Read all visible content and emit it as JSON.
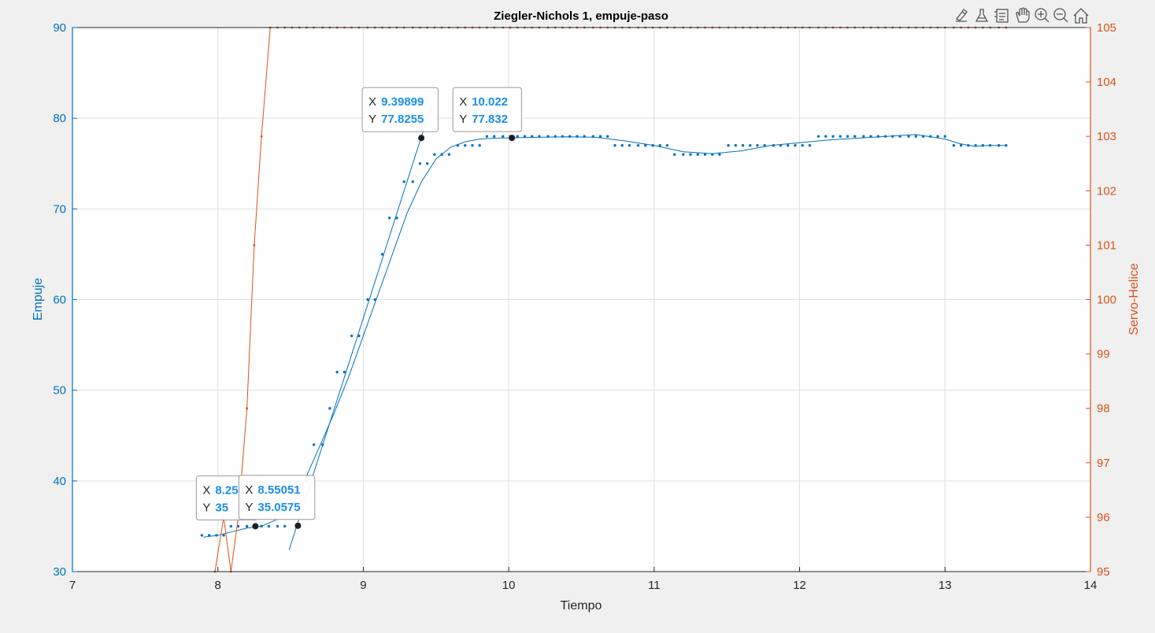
{
  "chart_data": {
    "type": "line",
    "title": "Ziegler-Nichols 1, empuje-paso",
    "xlabel": "Tiempo",
    "ylabel_left": "Empuje",
    "ylabel_right": "Servo-Helice",
    "xlim": [
      7,
      14
    ],
    "ylim_left": [
      30,
      90
    ],
    "ylim_right": [
      95,
      105
    ],
    "grid": true,
    "x_ticks": [
      "7",
      "8",
      "9",
      "10",
      "11",
      "12",
      "13",
      "14"
    ],
    "y_left_ticks": [
      "30",
      "40",
      "50",
      "60",
      "70",
      "80",
      "90"
    ],
    "y_right_ticks": [
      "95",
      "96",
      "97",
      "98",
      "99",
      "100",
      "101",
      "102",
      "103",
      "104",
      "105"
    ],
    "colors": {
      "empuje": "#0072bd",
      "servo": "#d95319",
      "axis_left": "#0072bd",
      "axis_right": "#d95319",
      "datatip_value": "#1a8fe8"
    },
    "series": [
      {
        "axis": "left",
        "style": "dots",
        "x": [
          7.89,
          7.94,
          7.99,
          8.04,
          8.09,
          8.14,
          8.2,
          8.25,
          8.3,
          8.35,
          8.41,
          8.46,
          8.51,
          8.56,
          8.61,
          8.66,
          8.72,
          8.77,
          8.82,
          8.87,
          8.92,
          8.97,
          9.03,
          9.08,
          9.13,
          9.18,
          9.23,
          9.28,
          9.34,
          9.39,
          9.44,
          9.49,
          9.54,
          9.59,
          9.65,
          9.7,
          9.75,
          9.8,
          9.85,
          9.9,
          9.96,
          10.01,
          10.06,
          10.11,
          10.16,
          10.21,
          10.27,
          10.32,
          10.37,
          10.42,
          10.47,
          10.52,
          10.58,
          10.63,
          10.68,
          10.73,
          10.78,
          10.83,
          10.89,
          10.94,
          10.99,
          11.04,
          11.09,
          11.14,
          11.2,
          11.25,
          11.3,
          11.35,
          11.4,
          11.45,
          11.51,
          11.56,
          11.61,
          11.66,
          11.71,
          11.76,
          11.82,
          11.87,
          11.92,
          11.97,
          12.02,
          12.07,
          12.13,
          12.18,
          12.23,
          12.28,
          12.33,
          12.38,
          12.44,
          12.49,
          12.54,
          12.59,
          12.64,
          12.69,
          12.75,
          12.8,
          12.85,
          12.9,
          12.95,
          13.0,
          13.06,
          13.11,
          13.16,
          13.21,
          13.26,
          13.31,
          13.37,
          13.42
        ],
        "values": [
          34,
          34,
          34,
          34,
          35,
          35,
          35,
          35,
          35,
          35,
          35,
          35,
          37,
          37,
          40,
          44,
          44,
          48,
          52,
          52,
          56,
          56,
          60,
          60,
          65,
          69,
          69,
          73,
          73,
          75,
          75,
          76,
          76,
          76,
          77,
          77,
          77,
          77,
          78,
          78,
          78,
          78,
          78,
          78,
          78,
          78,
          78,
          78,
          78,
          78,
          78,
          78,
          78,
          78,
          78,
          77,
          77,
          77,
          77,
          77,
          77,
          77,
          77,
          76,
          76,
          76,
          76,
          76,
          76,
          76,
          77,
          77,
          77,
          77,
          77,
          77,
          77,
          77,
          77,
          77,
          77,
          77,
          78,
          78,
          78,
          78,
          78,
          78,
          78,
          78,
          78,
          78,
          78,
          78,
          78,
          78,
          78,
          78,
          78,
          78,
          77,
          77,
          77,
          77,
          77,
          77,
          77,
          77
        ]
      },
      {
        "axis": "left",
        "style": "smooth-fit",
        "x": [
          7.9,
          8.0,
          8.1,
          8.2,
          8.3,
          8.4,
          8.5,
          8.6,
          8.7,
          8.8,
          8.9,
          9.0,
          9.1,
          9.2,
          9.3,
          9.4,
          9.5,
          9.6,
          9.7,
          9.8,
          9.9,
          10.0,
          10.2,
          10.4,
          10.6,
          10.8,
          11.0,
          11.2,
          11.4,
          11.6,
          11.8,
          12.0,
          12.2,
          12.4,
          12.6,
          12.8,
          13.0,
          13.1,
          13.2,
          13.3,
          13.42
        ],
        "values": [
          33.8,
          34.0,
          34.4,
          34.8,
          35.0,
          35.7,
          37.3,
          40.2,
          43.8,
          47.5,
          51.5,
          56.0,
          60.5,
          65.0,
          69.5,
          73.0,
          75.5,
          76.8,
          77.4,
          77.7,
          77.8,
          77.83,
          77.9,
          77.95,
          77.9,
          77.5,
          77.0,
          76.3,
          76.1,
          76.4,
          77.0,
          77.3,
          77.6,
          77.8,
          78.0,
          78.2,
          77.7,
          77.2,
          76.9,
          77.0,
          77.0
        ]
      },
      {
        "axis": "left",
        "style": "tangent-line",
        "x": [
          8.49,
          9.5
        ],
        "values": [
          32.4,
          83
        ]
      },
      {
        "axis": "right",
        "style": "line-markers",
        "x": [
          7.98,
          8.04,
          8.09,
          8.14,
          8.2,
          8.25,
          8.3,
          8.36,
          8.41,
          8.46,
          8.51,
          8.56,
          8.61,
          8.66,
          8.72,
          8.77,
          8.82,
          8.87,
          8.92,
          8.97,
          9.03,
          9.08,
          9.13,
          9.18,
          9.23,
          9.28,
          9.34,
          9.39,
          9.44,
          9.49,
          9.54,
          9.59,
          9.65,
          9.7,
          9.75,
          9.8,
          9.85,
          9.9,
          9.96,
          10.01,
          10.06,
          10.11,
          10.16,
          10.21,
          10.27,
          10.32,
          10.37,
          10.42,
          10.47,
          10.52,
          10.58,
          10.63,
          10.68,
          10.73,
          10.78,
          10.83,
          10.89,
          10.94,
          10.99,
          11.04,
          11.09,
          11.14,
          11.2,
          11.25,
          11.3,
          11.35,
          11.4,
          11.45,
          11.51,
          11.56,
          11.61,
          11.66,
          11.71,
          11.76,
          11.82,
          11.87,
          11.92,
          11.97,
          12.02,
          12.07,
          12.13,
          12.18,
          12.23,
          12.28,
          12.33,
          12.38,
          12.44,
          12.49,
          12.54,
          12.59,
          12.64,
          12.69,
          12.75,
          12.8,
          12.85,
          12.9,
          12.95,
          13.0,
          13.06,
          13.11,
          13.16,
          13.21,
          13.26,
          13.31,
          13.37,
          13.42
        ],
        "values": [
          95,
          96,
          95,
          96,
          98,
          101,
          103,
          105,
          105,
          105,
          105,
          105,
          105,
          105,
          105,
          105,
          105,
          105,
          105,
          105,
          105,
          105,
          105,
          105,
          105,
          105,
          105,
          105,
          105,
          105,
          105,
          105,
          105,
          105,
          105,
          105,
          105,
          105,
          105,
          105,
          105,
          105,
          105,
          105,
          105,
          105,
          105,
          105,
          105,
          105,
          105,
          105,
          105,
          105,
          105,
          105,
          105,
          105,
          105,
          105,
          105,
          105,
          105,
          105,
          105,
          105,
          105,
          105,
          105,
          105,
          105,
          105,
          105,
          105,
          105,
          105,
          105,
          105,
          105,
          105,
          105,
          105,
          105,
          105,
          105,
          105,
          105,
          105,
          105,
          105,
          105,
          105,
          105,
          105,
          105,
          105,
          105,
          105,
          105,
          105,
          105,
          105,
          105,
          105,
          105,
          105
        ]
      }
    ],
    "datatips": [
      {
        "x_label": "X",
        "y_label": "Y",
        "x_text": "8.258",
        "y_text": "35",
        "x": 8.258,
        "y": 35
      },
      {
        "x_label": "X",
        "y_label": "Y",
        "x_text": "8.55051",
        "y_text": "35.0575",
        "x": 8.55051,
        "y": 35.0575
      },
      {
        "x_label": "X",
        "y_label": "Y",
        "x_text": "9.39899",
        "y_text": "77.8255",
        "x": 9.39899,
        "y": 77.8255
      },
      {
        "x_label": "X",
        "y_label": "Y",
        "x_text": "10.022",
        "y_text": "77.832",
        "x": 10.022,
        "y": 77.832
      }
    ]
  },
  "toolbar": {
    "icons": [
      "brush-icon",
      "datatip-icon",
      "legend-icon",
      "pan-icon",
      "zoom-in-icon",
      "zoom-out-icon",
      "home-icon"
    ]
  }
}
